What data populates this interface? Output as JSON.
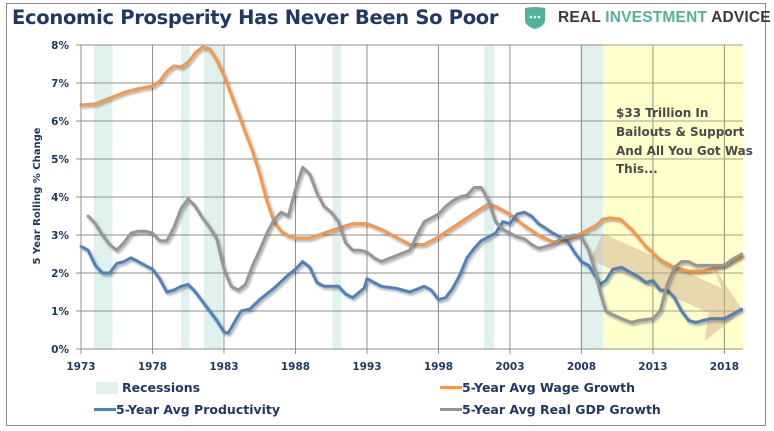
{
  "header": {
    "title": "Economic Prosperity Has Never Been So Poor",
    "logo": {
      "icon": "shield-dots-icon",
      "word1": "REAL",
      "word2": "INVESTMENT",
      "word3": "ADVICE",
      "accent_color": "#4fb39b"
    }
  },
  "chart_data": {
    "type": "line",
    "title": "Economic Prosperity Has Never Been So Poor",
    "xlabel": "",
    "ylabel": "5 Year Rolling % Change",
    "xlim": [
      1973,
      2019.3
    ],
    "ylim": [
      0,
      8
    ],
    "x_ticks": [
      1973,
      1978,
      1983,
      1988,
      1993,
      1998,
      2003,
      2008,
      2013,
      2018
    ],
    "y_ticks": [
      0,
      1,
      2,
      3,
      4,
      5,
      6,
      7,
      8
    ],
    "y_tick_labels": [
      "0%",
      "1%",
      "2%",
      "3%",
      "4%",
      "5%",
      "6%",
      "7%",
      "8%"
    ],
    "grid": true,
    "legend_placement": "bottom",
    "recessions": [
      [
        1973.9,
        1975.2
      ],
      [
        1980.0,
        1980.6
      ],
      [
        1981.6,
        1982.9
      ],
      [
        1990.6,
        1991.2
      ],
      [
        2001.2,
        2001.9
      ],
      [
        2007.9,
        2009.5
      ]
    ],
    "highlight_region": {
      "start": 2009.5,
      "end": 2019.3,
      "color": "#ffffcc"
    },
    "annotation": [
      "$33 Trillion In",
      "Bailouts & Support",
      "And All You Got Was",
      "This..."
    ],
    "series": [
      {
        "name": "5-Year Avg Wage Growth",
        "color": "#f79646",
        "points": [
          [
            1973,
            6.42
          ],
          [
            1974,
            6.45
          ],
          [
            1975,
            6.6
          ],
          [
            1976,
            6.75
          ],
          [
            1977,
            6.85
          ],
          [
            1978,
            6.92
          ],
          [
            1978.5,
            7.05
          ],
          [
            1979,
            7.3
          ],
          [
            1979.5,
            7.45
          ],
          [
            1980,
            7.42
          ],
          [
            1980.5,
            7.55
          ],
          [
            1981,
            7.8
          ],
          [
            1981.5,
            7.95
          ],
          [
            1982,
            7.9
          ],
          [
            1982.5,
            7.6
          ],
          [
            1983,
            7.2
          ],
          [
            1983.5,
            6.7
          ],
          [
            1984,
            6.2
          ],
          [
            1984.5,
            5.7
          ],
          [
            1985,
            5.2
          ],
          [
            1985.5,
            4.6
          ],
          [
            1986,
            3.9
          ],
          [
            1986.5,
            3.35
          ],
          [
            1987,
            3.1
          ],
          [
            1987.5,
            2.98
          ],
          [
            1988,
            2.92
          ],
          [
            1989,
            2.92
          ],
          [
            1990,
            3.05
          ],
          [
            1991,
            3.18
          ],
          [
            1992,
            3.3
          ],
          [
            1993,
            3.3
          ],
          [
            1994,
            3.15
          ],
          [
            1995,
            2.95
          ],
          [
            1996,
            2.75
          ],
          [
            1997,
            2.75
          ],
          [
            1998,
            2.95
          ],
          [
            1999,
            3.2
          ],
          [
            2000,
            3.45
          ],
          [
            2001,
            3.7
          ],
          [
            2001.5,
            3.82
          ],
          [
            2002,
            3.75
          ],
          [
            2003,
            3.55
          ],
          [
            2004,
            3.25
          ],
          [
            2005,
            3.0
          ],
          [
            2006,
            2.82
          ],
          [
            2007,
            2.85
          ],
          [
            2008,
            3.05
          ],
          [
            2009,
            3.25
          ],
          [
            2009.5,
            3.42
          ],
          [
            2010,
            3.45
          ],
          [
            2010.7,
            3.42
          ],
          [
            2011.5,
            3.15
          ],
          [
            2012.5,
            2.7
          ],
          [
            2013.5,
            2.35
          ],
          [
            2014.5,
            2.15
          ],
          [
            2015.5,
            2.05
          ],
          [
            2016.5,
            2.05
          ],
          [
            2017.5,
            2.15
          ],
          [
            2018.5,
            2.3
          ],
          [
            2019.2,
            2.45
          ]
        ]
      },
      {
        "name": "5-Year Avg Productivity",
        "color": "#4f81bd",
        "points": [
          [
            1973,
            2.7
          ],
          [
            1973.5,
            2.6
          ],
          [
            1974,
            2.2
          ],
          [
            1974.5,
            2.0
          ],
          [
            1975,
            2.0
          ],
          [
            1975.5,
            2.25
          ],
          [
            1976,
            2.3
          ],
          [
            1976.5,
            2.4
          ],
          [
            1977,
            2.3
          ],
          [
            1977.5,
            2.2
          ],
          [
            1978,
            2.1
          ],
          [
            1978.5,
            1.85
          ],
          [
            1979,
            1.5
          ],
          [
            1979.5,
            1.55
          ],
          [
            1980,
            1.65
          ],
          [
            1980.5,
            1.7
          ],
          [
            1981,
            1.5
          ],
          [
            1981.5,
            1.25
          ],
          [
            1982,
            1.0
          ],
          [
            1982.5,
            0.75
          ],
          [
            1983,
            0.45
          ],
          [
            1983.3,
            0.42
          ],
          [
            1983.8,
            0.75
          ],
          [
            1984.2,
            1.0
          ],
          [
            1984.8,
            1.05
          ],
          [
            1985.5,
            1.3
          ],
          [
            1986.5,
            1.6
          ],
          [
            1987.5,
            1.95
          ],
          [
            1988,
            2.1
          ],
          [
            1988.5,
            2.3
          ],
          [
            1989,
            2.15
          ],
          [
            1989.5,
            1.75
          ],
          [
            1990,
            1.65
          ],
          [
            1991,
            1.65
          ],
          [
            1991.5,
            1.45
          ],
          [
            1992,
            1.35
          ],
          [
            1992.8,
            1.6
          ],
          [
            1993,
            1.85
          ],
          [
            1993.5,
            1.75
          ],
          [
            1994,
            1.65
          ],
          [
            1995,
            1.6
          ],
          [
            1996,
            1.5
          ],
          [
            1997,
            1.65
          ],
          [
            1997.5,
            1.55
          ],
          [
            1998,
            1.3
          ],
          [
            1998.5,
            1.35
          ],
          [
            1999,
            1.6
          ],
          [
            1999.5,
            1.95
          ],
          [
            2000,
            2.4
          ],
          [
            2000.5,
            2.65
          ],
          [
            2001,
            2.85
          ],
          [
            2001.5,
            2.95
          ],
          [
            2002,
            3.05
          ],
          [
            2002.5,
            3.35
          ],
          [
            2003,
            3.3
          ],
          [
            2003.5,
            3.55
          ],
          [
            2004,
            3.6
          ],
          [
            2004.5,
            3.5
          ],
          [
            2005,
            3.3
          ],
          [
            2006,
            3.05
          ],
          [
            2007,
            2.85
          ],
          [
            2007.5,
            2.55
          ],
          [
            2008,
            2.3
          ],
          [
            2008.5,
            2.2
          ],
          [
            2009,
            1.9
          ],
          [
            2009.3,
            1.7
          ],
          [
            2009.7,
            1.8
          ],
          [
            2010.2,
            2.1
          ],
          [
            2010.8,
            2.15
          ],
          [
            2011.5,
            2.0
          ],
          [
            2012,
            1.9
          ],
          [
            2012.5,
            1.75
          ],
          [
            2013,
            1.8
          ],
          [
            2013.5,
            1.55
          ],
          [
            2014,
            1.55
          ],
          [
            2014.5,
            1.35
          ],
          [
            2015,
            1.0
          ],
          [
            2015.5,
            0.75
          ],
          [
            2016,
            0.7
          ],
          [
            2016.5,
            0.75
          ],
          [
            2017,
            0.8
          ],
          [
            2017.5,
            0.8
          ],
          [
            2018,
            0.8
          ],
          [
            2018.5,
            0.9
          ],
          [
            2019.2,
            1.05
          ]
        ]
      },
      {
        "name": "5-Year Avg Real GDP Growth",
        "color": "#969696",
        "points": [
          [
            1973.5,
            3.5
          ],
          [
            1974,
            3.3
          ],
          [
            1974.5,
            3.0
          ],
          [
            1975,
            2.75
          ],
          [
            1975.5,
            2.6
          ],
          [
            1976,
            2.8
          ],
          [
            1976.5,
            3.05
          ],
          [
            1977,
            3.1
          ],
          [
            1977.5,
            3.1
          ],
          [
            1978,
            3.05
          ],
          [
            1978.5,
            2.85
          ],
          [
            1979,
            2.85
          ],
          [
            1979.5,
            3.2
          ],
          [
            1980,
            3.7
          ],
          [
            1980.5,
            3.95
          ],
          [
            1981,
            3.75
          ],
          [
            1981.5,
            3.45
          ],
          [
            1982,
            3.2
          ],
          [
            1982.5,
            2.9
          ],
          [
            1983,
            2.1
          ],
          [
            1983.5,
            1.65
          ],
          [
            1984,
            1.55
          ],
          [
            1984.5,
            1.7
          ],
          [
            1985,
            2.2
          ],
          [
            1985.5,
            2.6
          ],
          [
            1986,
            3.05
          ],
          [
            1986.5,
            3.4
          ],
          [
            1987,
            3.6
          ],
          [
            1987.5,
            3.5
          ],
          [
            1988,
            4.2
          ],
          [
            1988.5,
            4.78
          ],
          [
            1989,
            4.6
          ],
          [
            1989.5,
            4.1
          ],
          [
            1990,
            3.75
          ],
          [
            1990.5,
            3.6
          ],
          [
            1991,
            3.35
          ],
          [
            1991.5,
            2.8
          ],
          [
            1992,
            2.6
          ],
          [
            1992.5,
            2.6
          ],
          [
            1993,
            2.55
          ],
          [
            1993.5,
            2.4
          ],
          [
            1994,
            2.3
          ],
          [
            1995,
            2.45
          ],
          [
            1996,
            2.6
          ],
          [
            1996.5,
            3.0
          ],
          [
            1997,
            3.35
          ],
          [
            1997.5,
            3.45
          ],
          [
            1998,
            3.55
          ],
          [
            1998.5,
            3.75
          ],
          [
            1999,
            3.9
          ],
          [
            1999.5,
            4.0
          ],
          [
            2000,
            4.05
          ],
          [
            2000.5,
            4.25
          ],
          [
            2001,
            4.25
          ],
          [
            2001.5,
            3.9
          ],
          [
            2002,
            3.35
          ],
          [
            2002.5,
            3.15
          ],
          [
            2003,
            3.05
          ],
          [
            2003.5,
            2.95
          ],
          [
            2004,
            2.9
          ],
          [
            2004.5,
            2.75
          ],
          [
            2005,
            2.65
          ],
          [
            2005.5,
            2.7
          ],
          [
            2006,
            2.75
          ],
          [
            2006.5,
            2.9
          ],
          [
            2007,
            2.95
          ],
          [
            2007.5,
            3.0
          ],
          [
            2008,
            2.95
          ],
          [
            2008.5,
            2.6
          ],
          [
            2009,
            2.0
          ],
          [
            2009.3,
            1.5
          ],
          [
            2009.7,
            1.0
          ],
          [
            2010.2,
            0.9
          ],
          [
            2010.8,
            0.8
          ],
          [
            2011.5,
            0.7
          ],
          [
            2012,
            0.75
          ],
          [
            2013,
            0.8
          ],
          [
            2013.5,
            1.0
          ],
          [
            2014,
            1.7
          ],
          [
            2014.5,
            2.15
          ],
          [
            2015,
            2.3
          ],
          [
            2015.5,
            2.3
          ],
          [
            2016,
            2.2
          ],
          [
            2016.5,
            2.2
          ],
          [
            2017,
            2.2
          ],
          [
            2017.5,
            2.2
          ],
          [
            2018,
            2.2
          ],
          [
            2018.5,
            2.35
          ],
          [
            2019.2,
            2.5
          ]
        ]
      }
    ],
    "legend": [
      {
        "name": "Recessions",
        "kind": "box",
        "color": "#dff2ee"
      },
      {
        "name": "5-Year Avg Wage Growth",
        "kind": "line",
        "color": "#f79646"
      },
      {
        "name": "5-Year Avg Productivity",
        "kind": "line",
        "color": "#4f81bd"
      },
      {
        "name": "5-Year Avg Real GDP Growth",
        "kind": "line",
        "color": "#969696"
      }
    ]
  }
}
